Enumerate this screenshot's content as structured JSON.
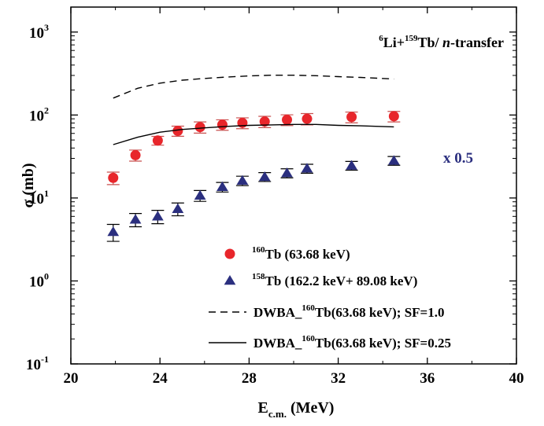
{
  "chart_data": {
    "type": "scatter",
    "title": "",
    "reaction": {
      "sup1": "6",
      "t1": "Li+",
      "sup2": "159",
      "t2": "Tb/ ",
      "ital": "n",
      "t3": "-transfer"
    },
    "xlabel": {
      "main": "E",
      "sub": "c.m.",
      "rest": " (MeV)"
    },
    "ylabel": "σ (mb)",
    "xlim": [
      20,
      40
    ],
    "ylim": [
      0.1,
      2000
    ],
    "yscale": "log",
    "x_ticks": [
      "20",
      "24",
      "28",
      "32",
      "36",
      "40"
    ],
    "y_ticks": [
      {
        "value": 0.1,
        "base": "10",
        "exp": "-1"
      },
      {
        "value": 1,
        "base": "10",
        "exp": "0"
      },
      {
        "value": 10,
        "base": "10",
        "exp": "1"
      },
      {
        "value": 100,
        "base": "10",
        "exp": "2"
      },
      {
        "value": 1000,
        "base": "10",
        "exp": "3"
      }
    ],
    "annotation": "x 0.5",
    "series": [
      {
        "kind": "points",
        "marker": "circle",
        "color": "#e8262b",
        "err_color": "#c8504f",
        "legend": {
          "sup": "160",
          "text": "Tb (63.68 keV)"
        },
        "x": [
          21.9,
          22.9,
          23.9,
          24.8,
          25.8,
          26.8,
          27.7,
          28.7,
          29.7,
          30.6,
          32.6,
          34.5
        ],
        "y": [
          17.5,
          32.8,
          49.3,
          64.4,
          71.5,
          76.5,
          80.4,
          83.5,
          87.6,
          90.0,
          94.6,
          96.6
        ],
        "err": [
          3.0,
          5.0,
          6.0,
          9.0,
          11.0,
          11.0,
          12.0,
          13.0,
          13.0,
          14.0,
          14.0,
          14.0
        ]
      },
      {
        "kind": "points",
        "marker": "triangle",
        "color": "#2b2f7f",
        "err_color": "#000000",
        "legend": {
          "sup": "158",
          "text": "Tb (162.2 keV+ 89.08 keV)"
        },
        "x": [
          21.9,
          22.9,
          23.9,
          24.8,
          25.8,
          26.8,
          27.7,
          28.7,
          29.7,
          30.6,
          32.6,
          34.5
        ],
        "y": [
          3.9,
          5.5,
          6.0,
          7.4,
          10.7,
          13.6,
          16.2,
          18.0,
          20.0,
          22.7,
          24.6,
          28.2
        ],
        "err": [
          0.9,
          1.0,
          1.1,
          1.3,
          1.6,
          1.8,
          2.1,
          2.2,
          2.5,
          2.8,
          3.0,
          3.4
        ]
      },
      {
        "kind": "line",
        "dash": "dashed",
        "color": "#000000",
        "legend": {
          "pre": "DWBA_",
          "sup": "160",
          "text": "Tb(63.68 keV); SF=1.0"
        },
        "x": [
          21.9,
          23,
          24,
          25,
          26,
          27,
          28,
          29,
          30,
          31,
          32,
          33,
          34.5
        ],
        "y": [
          160,
          210,
          242,
          263,
          276,
          287,
          296,
          302,
          302,
          298,
          290,
          284,
          272
        ]
      },
      {
        "kind": "line",
        "dash": "solid",
        "color": "#000000",
        "legend": {
          "pre": "DWBA_",
          "sup": "160",
          "text": "Tb(63.68 keV); SF=0.25"
        },
        "x": [
          21.9,
          23,
          24,
          25,
          26,
          27,
          28,
          29,
          30,
          31,
          32,
          33,
          34.5
        ],
        "y": [
          44,
          54,
          62,
          67,
          70,
          73,
          75,
          76,
          77,
          77,
          75,
          74,
          72
        ]
      }
    ]
  }
}
